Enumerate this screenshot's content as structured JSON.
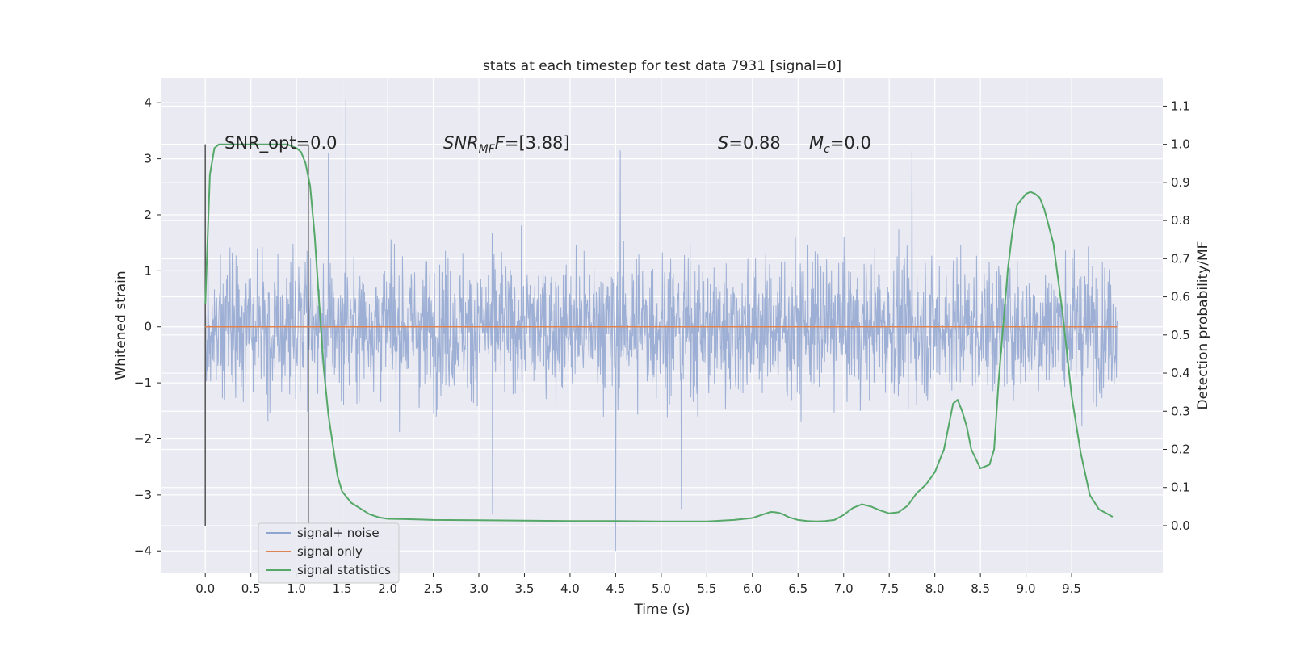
{
  "chart_data": {
    "type": "line",
    "title": "stats at each timestep for test data 7931 [signal=0]",
    "xlabel": "Time (s)",
    "ylabel": "Whitened strain",
    "y2label": "Detection probability/MF",
    "xlim": [
      -0.48,
      10.5
    ],
    "ylim": [
      -4.4,
      4.45
    ],
    "y2lim": [
      -0.125,
      1.175
    ],
    "xticks": [
      "0.0",
      "0.5",
      "1.0",
      "1.5",
      "2.0",
      "2.5",
      "3.0",
      "3.5",
      "4.0",
      "4.5",
      "5.0",
      "5.5",
      "6.0",
      "6.5",
      "7.0",
      "7.5",
      "8.0",
      "8.5",
      "9.0",
      "9.5"
    ],
    "yticks": [
      "4",
      "3",
      "2",
      "1",
      "0",
      "−1",
      "−2",
      "−3",
      "−4"
    ],
    "y2ticks": [
      "0.0",
      "0.1",
      "0.2",
      "0.3",
      "0.4",
      "0.5",
      "0.6",
      "0.7",
      "0.8",
      "0.9",
      "1.0",
      "1.1"
    ],
    "grid": true,
    "legend_position": "lower-left",
    "annotations": {
      "snr_opt": "SNR_opt=0.0",
      "snr_mf_main": "SNR",
      "snr_mf_sub": "MF",
      "snr_mf_tail": "=[3.88]",
      "s_main": "S",
      "s_tail": "=0.88",
      "mc_main": "M",
      "mc_sub": "c",
      "mc_tail": "=0.0"
    },
    "vlines": [
      0.0,
      1.13
    ],
    "series": [
      {
        "name": "signal+ noise",
        "color": "#8fa5cf",
        "axis": "left",
        "noise_range": [
          0.0,
          10.0
        ],
        "notable_spikes": [
          {
            "x": 1.54,
            "y": 4.05
          },
          {
            "x": 1.35,
            "y": 3.1
          },
          {
            "x": 4.55,
            "y": 3.15
          },
          {
            "x": 7.75,
            "y": 3.15
          },
          {
            "x": 4.5,
            "y": -4.0
          },
          {
            "x": 3.15,
            "y": -3.35
          },
          {
            "x": 5.22,
            "y": -3.25
          }
        ]
      },
      {
        "name": "signal only",
        "color": "#dd8452",
        "axis": "left",
        "x": [
          0.0,
          10.0
        ],
        "y": [
          0.0,
          0.0
        ]
      },
      {
        "name": "signal statistics",
        "color": "#55a868",
        "axis": "right",
        "x": [
          0.0,
          0.05,
          0.1,
          0.15,
          0.2,
          0.3,
          0.5,
          0.7,
          0.9,
          1.0,
          1.05,
          1.1,
          1.15,
          1.2,
          1.25,
          1.3,
          1.35,
          1.4,
          1.45,
          1.5,
          1.6,
          1.7,
          1.8,
          1.9,
          2.0,
          2.2,
          2.5,
          3.0,
          3.5,
          4.0,
          4.5,
          5.0,
          5.5,
          5.8,
          6.0,
          6.1,
          6.2,
          6.25,
          6.3,
          6.35,
          6.4,
          6.5,
          6.6,
          6.7,
          6.8,
          6.9,
          7.0,
          7.1,
          7.2,
          7.3,
          7.4,
          7.5,
          7.6,
          7.7,
          7.8,
          7.9,
          8.0,
          8.1,
          8.2,
          8.25,
          8.3,
          8.35,
          8.4,
          8.5,
          8.6,
          8.65,
          8.7,
          8.8,
          8.85,
          8.9,
          9.0,
          9.05,
          9.1,
          9.15,
          9.2,
          9.3,
          9.4,
          9.5,
          9.6,
          9.7,
          9.8,
          9.9,
          9.95
        ],
        "y": [
          0.58,
          0.92,
          0.99,
          1.0,
          1.0,
          1.0,
          1.0,
          1.0,
          1.0,
          0.99,
          0.98,
          0.95,
          0.89,
          0.76,
          0.58,
          0.41,
          0.29,
          0.21,
          0.13,
          0.09,
          0.06,
          0.045,
          0.03,
          0.022,
          0.018,
          0.017,
          0.015,
          0.014,
          0.013,
          0.012,
          0.012,
          0.011,
          0.011,
          0.015,
          0.02,
          0.028,
          0.036,
          0.035,
          0.033,
          0.028,
          0.022,
          0.015,
          0.012,
          0.011,
          0.012,
          0.015,
          0.028,
          0.046,
          0.056,
          0.05,
          0.04,
          0.032,
          0.035,
          0.052,
          0.085,
          0.107,
          0.14,
          0.2,
          0.32,
          0.33,
          0.3,
          0.26,
          0.2,
          0.15,
          0.16,
          0.2,
          0.38,
          0.67,
          0.77,
          0.84,
          0.87,
          0.875,
          0.87,
          0.86,
          0.83,
          0.74,
          0.56,
          0.34,
          0.19,
          0.08,
          0.043,
          0.03,
          0.023
        ]
      }
    ]
  }
}
